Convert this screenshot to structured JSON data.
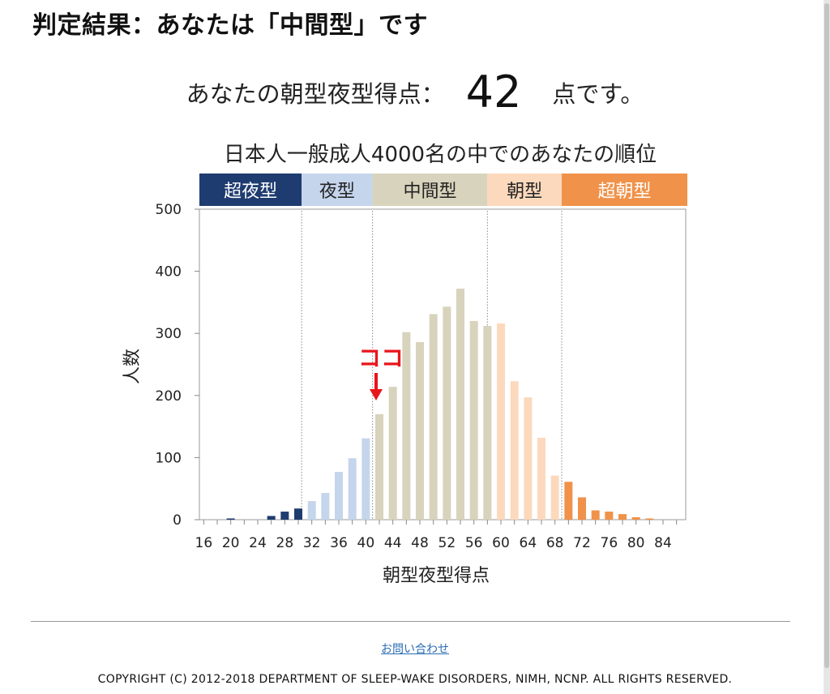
{
  "page": {
    "title": "判定結果：あなたは「中間型」です",
    "score_prefix": "あなたの朝型夜型得点：",
    "score_value": "42",
    "score_suffix": "点です。",
    "contact_link": "お問い合わせ",
    "copyright": "COPYRIGHT (C) 2012-2018 DEPARTMENT OF SLEEP-WAKE DISORDERS, NIMH, NCNP. ALL RIGHTS RESERVED."
  },
  "chart_data": {
    "type": "bar",
    "title": "日本人一般成人4000名の中でのあなたの順位",
    "xlabel": "朝型夜型得点",
    "ylabel": "人数",
    "ylim": [
      0,
      500
    ],
    "yticks": [
      0,
      100,
      200,
      300,
      400,
      500
    ],
    "xticks": [
      16,
      20,
      24,
      28,
      32,
      36,
      40,
      44,
      48,
      52,
      56,
      60,
      64,
      68,
      72,
      76,
      80,
      84
    ],
    "x_range": [
      16,
      86
    ],
    "grid": false,
    "categories": [
      16,
      18,
      20,
      22,
      24,
      26,
      28,
      30,
      32,
      34,
      36,
      38,
      40,
      42,
      44,
      46,
      48,
      50,
      52,
      54,
      56,
      58,
      60,
      62,
      64,
      66,
      68,
      70,
      72,
      74,
      76,
      78,
      80,
      82,
      84
    ],
    "values": [
      0,
      0,
      2,
      0,
      0,
      6,
      13,
      18,
      30,
      43,
      77,
      99,
      131,
      170,
      214,
      302,
      286,
      331,
      343,
      372,
      320,
      312,
      316,
      223,
      197,
      132,
      71,
      61,
      36,
      15,
      13,
      9,
      4,
      2,
      0
    ],
    "bands": [
      {
        "label": "超夜型",
        "from": 16,
        "to": 30,
        "color": "#1f3c70",
        "text_color": "#ffffff"
      },
      {
        "label": "夜型",
        "from": 31,
        "to": 41,
        "color": "#c5d5ec",
        "text_color": "#222222"
      },
      {
        "label": "中間型",
        "from": 42,
        "to": 58,
        "color": "#d8d3bc",
        "text_color": "#222222"
      },
      {
        "label": "朝型",
        "from": 59,
        "to": 69,
        "color": "#fcd9bd",
        "text_color": "#222222"
      },
      {
        "label": "超朝型",
        "from": 70,
        "to": 86,
        "color": "#f0924a",
        "text_color": "#ffffff"
      }
    ],
    "band_boundaries": [
      30.5,
      41,
      58,
      69
    ],
    "annotation": {
      "label": "ココ",
      "x": 42,
      "color": "#e8151b"
    }
  }
}
